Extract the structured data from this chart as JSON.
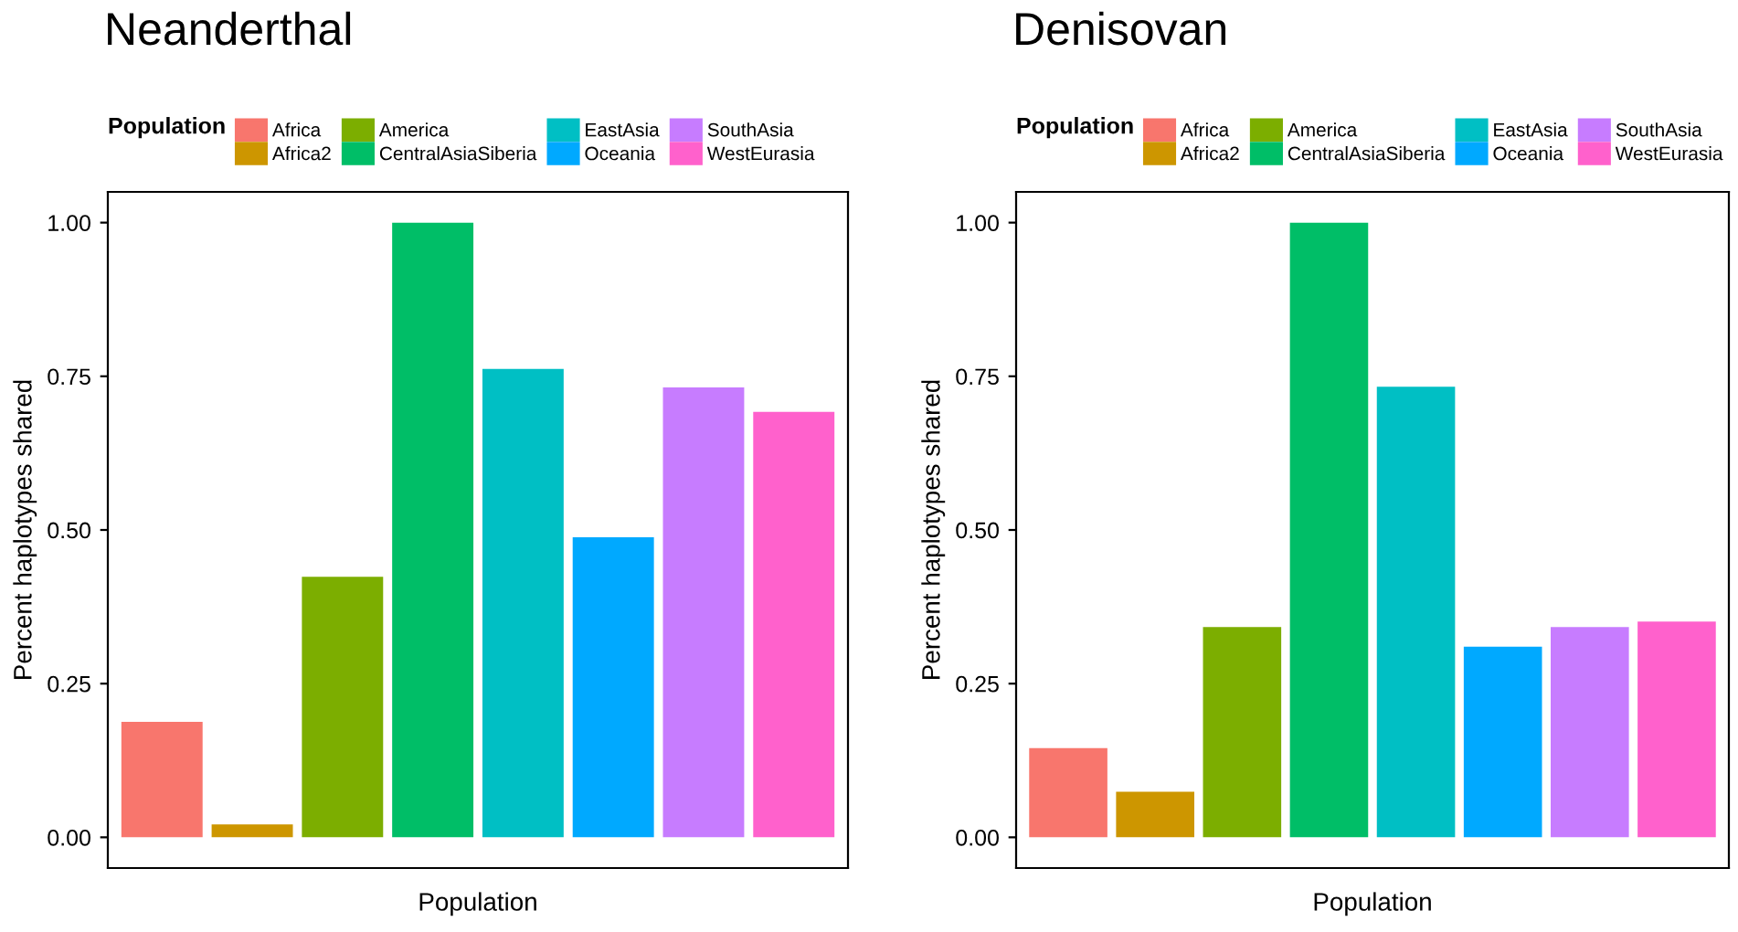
{
  "chart_data": [
    {
      "type": "bar",
      "title": "Neanderthal",
      "xlabel": "Population",
      "ylabel": "Percent haplotypes shared",
      "legend_title": "Population",
      "legend": "top",
      "categories": [
        null,
        null,
        null,
        null,
        null,
        null,
        null,
        null
      ],
      "series": [
        {
          "name": "Africa",
          "color": "#f8766d",
          "values": [
            0.188,
            null,
            null,
            null,
            null,
            null,
            null,
            null
          ]
        },
        {
          "name": "Africa2",
          "color": "#cd9600",
          "values": [
            null,
            0.021,
            null,
            null,
            null,
            null,
            null,
            null
          ]
        },
        {
          "name": "America",
          "color": "#7cae00",
          "values": [
            null,
            null,
            0.424,
            null,
            null,
            null,
            null,
            null
          ]
        },
        {
          "name": "CentralAsiaSiberia",
          "color": "#00be67",
          "values": [
            null,
            null,
            null,
            1.0,
            null,
            null,
            null,
            null
          ]
        },
        {
          "name": "EastAsia",
          "color": "#00bfc4",
          "values": [
            null,
            null,
            null,
            null,
            0.762,
            null,
            null,
            null
          ]
        },
        {
          "name": "Oceania",
          "color": "#00a9ff",
          "values": [
            null,
            null,
            null,
            null,
            null,
            0.488,
            null,
            null
          ]
        },
        {
          "name": "SouthAsia",
          "color": "#c77cff",
          "values": [
            null,
            null,
            null,
            null,
            null,
            null,
            0.732,
            null
          ]
        },
        {
          "name": "WestEurasia",
          "color": "#ff61cc",
          "values": [
            null,
            null,
            null,
            null,
            null,
            null,
            null,
            0.692
          ]
        }
      ],
      "ylim": [
        -0.05,
        1.05
      ],
      "yticks": [
        {
          "value": 0,
          "label": "0.00"
        },
        {
          "value": 0.25,
          "label": "0.25"
        },
        {
          "value": 0.5,
          "label": "0.50"
        },
        {
          "value": 0.75,
          "label": "0.75"
        },
        {
          "value": 1,
          "label": "1.00"
        }
      ],
      "grid": false
    },
    {
      "type": "bar",
      "title": "Denisovan",
      "xlabel": "Population",
      "ylabel": "Percent haplotypes shared",
      "legend_title": "Population",
      "legend": "top",
      "categories": [
        null,
        null,
        null,
        null,
        null,
        null,
        null,
        null
      ],
      "series": [
        {
          "name": "Africa",
          "color": "#f8766d",
          "values": [
            0.145,
            null,
            null,
            null,
            null,
            null,
            null,
            null
          ]
        },
        {
          "name": "Africa2",
          "color": "#cd9600",
          "values": [
            null,
            0.074,
            null,
            null,
            null,
            null,
            null,
            null
          ]
        },
        {
          "name": "America",
          "color": "#7cae00",
          "values": [
            null,
            null,
            0.342,
            null,
            null,
            null,
            null,
            null
          ]
        },
        {
          "name": "CentralAsiaSiberia",
          "color": "#00be67",
          "values": [
            null,
            null,
            null,
            1.0,
            null,
            null,
            null,
            null
          ]
        },
        {
          "name": "EastAsia",
          "color": "#00bfc4",
          "values": [
            null,
            null,
            null,
            null,
            0.733,
            null,
            null,
            null
          ]
        },
        {
          "name": "Oceania",
          "color": "#00a9ff",
          "values": [
            null,
            null,
            null,
            null,
            null,
            0.31,
            null,
            null
          ]
        },
        {
          "name": "SouthAsia",
          "color": "#c77cff",
          "values": [
            null,
            null,
            null,
            null,
            null,
            null,
            0.342,
            null
          ]
        },
        {
          "name": "WestEurasia",
          "color": "#ff61cc",
          "values": [
            null,
            null,
            null,
            null,
            null,
            null,
            null,
            0.351
          ]
        }
      ],
      "ylim": [
        -0.05,
        1.05
      ],
      "yticks": [
        {
          "value": 0,
          "label": "0.00"
        },
        {
          "value": 0.25,
          "label": "0.25"
        },
        {
          "value": 0.5,
          "label": "0.50"
        },
        {
          "value": 0.75,
          "label": "0.75"
        },
        {
          "value": 1,
          "label": "1.00"
        }
      ],
      "grid": false
    }
  ]
}
